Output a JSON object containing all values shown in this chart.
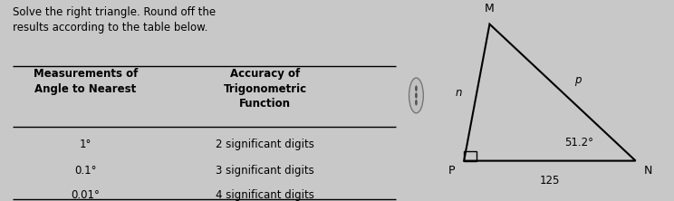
{
  "title_text": "Solve the right triangle. Round off the\nresults according to the table below.",
  "col1_header": "Measurements of\nAngle to Nearest",
  "col2_header": "Accuracy of\nTrigonometric\nFunction",
  "rows": [
    [
      "1°",
      "2 significant digits"
    ],
    [
      "0.1°",
      "3 significant digits"
    ],
    [
      "0.01°",
      "4 significant digits"
    ]
  ],
  "bg_color": "#c8c8c8",
  "left_bg": "#dcdcdc",
  "right_bg": "#c8c8c8",
  "angle_label": "51.2°",
  "side_label": "125",
  "font_size_title": 8.5,
  "font_size_header": 8.5,
  "font_size_table": 8.5,
  "font_size_triangle": 9
}
